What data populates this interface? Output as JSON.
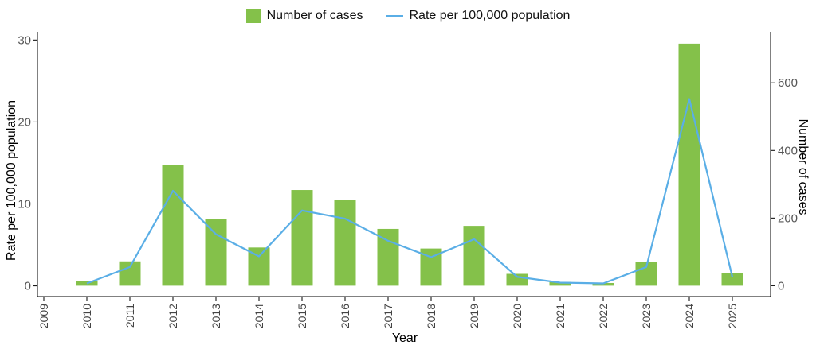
{
  "chart_data": {
    "type": "bar",
    "title": "",
    "xlabel": "Year",
    "ylabel_left": "Rate per 100,000 population",
    "ylabel_right": "Number of cases",
    "categories": [
      "2009",
      "2010",
      "2011",
      "2012",
      "2013",
      "2014",
      "2015",
      "2016",
      "2017",
      "2018",
      "2019",
      "2020",
      "2021",
      "2022",
      "2023",
      "2024",
      "2025"
    ],
    "y_left_lim": [
      -1.3,
      31
    ],
    "y_left_ticks": [
      "0",
      "10",
      "20",
      "30"
    ],
    "y_right_lim": [
      -32,
      751
    ],
    "y_right_ticks": [
      "0",
      "200",
      "400",
      "600"
    ],
    "legend_position": "top-center",
    "grid": false,
    "series": [
      {
        "name": "Number of cases",
        "type": "bar",
        "axis": "right",
        "color": "#84c14a",
        "values": [
          null,
          15,
          72,
          357,
          198,
          113,
          283,
          253,
          168,
          110,
          177,
          35,
          11,
          8,
          70,
          716,
          37
        ]
      },
      {
        "name": "Rate per 100,000 population",
        "type": "line",
        "axis": "left",
        "color": "#5aaee6",
        "values": [
          null,
          0.3,
          2.3,
          11.6,
          6.3,
          3.6,
          9.2,
          8.2,
          5.5,
          3.5,
          5.7,
          1.1,
          0.4,
          0.3,
          2.3,
          22.8,
          1.1
        ]
      }
    ]
  }
}
